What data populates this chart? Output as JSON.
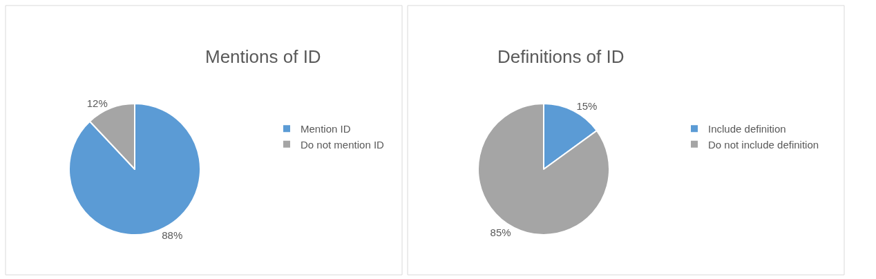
{
  "chart_data": [
    {
      "type": "pie",
      "title": "Mentions of ID",
      "categories": [
        "Mention ID",
        "Do not mention ID"
      ],
      "values": [
        88,
        12
      ],
      "colors": [
        "#5b9bd5",
        "#a5a5a5"
      ],
      "value_labels": [
        "88%",
        "12%"
      ],
      "legend": "right"
    },
    {
      "type": "pie",
      "title": "Definitions of ID",
      "categories": [
        "Include definition",
        "Do not include definition"
      ],
      "values": [
        15,
        85
      ],
      "colors": [
        "#5b9bd5",
        "#a5a5a5"
      ],
      "value_labels": [
        "15%",
        "85%"
      ],
      "legend": "right"
    }
  ]
}
